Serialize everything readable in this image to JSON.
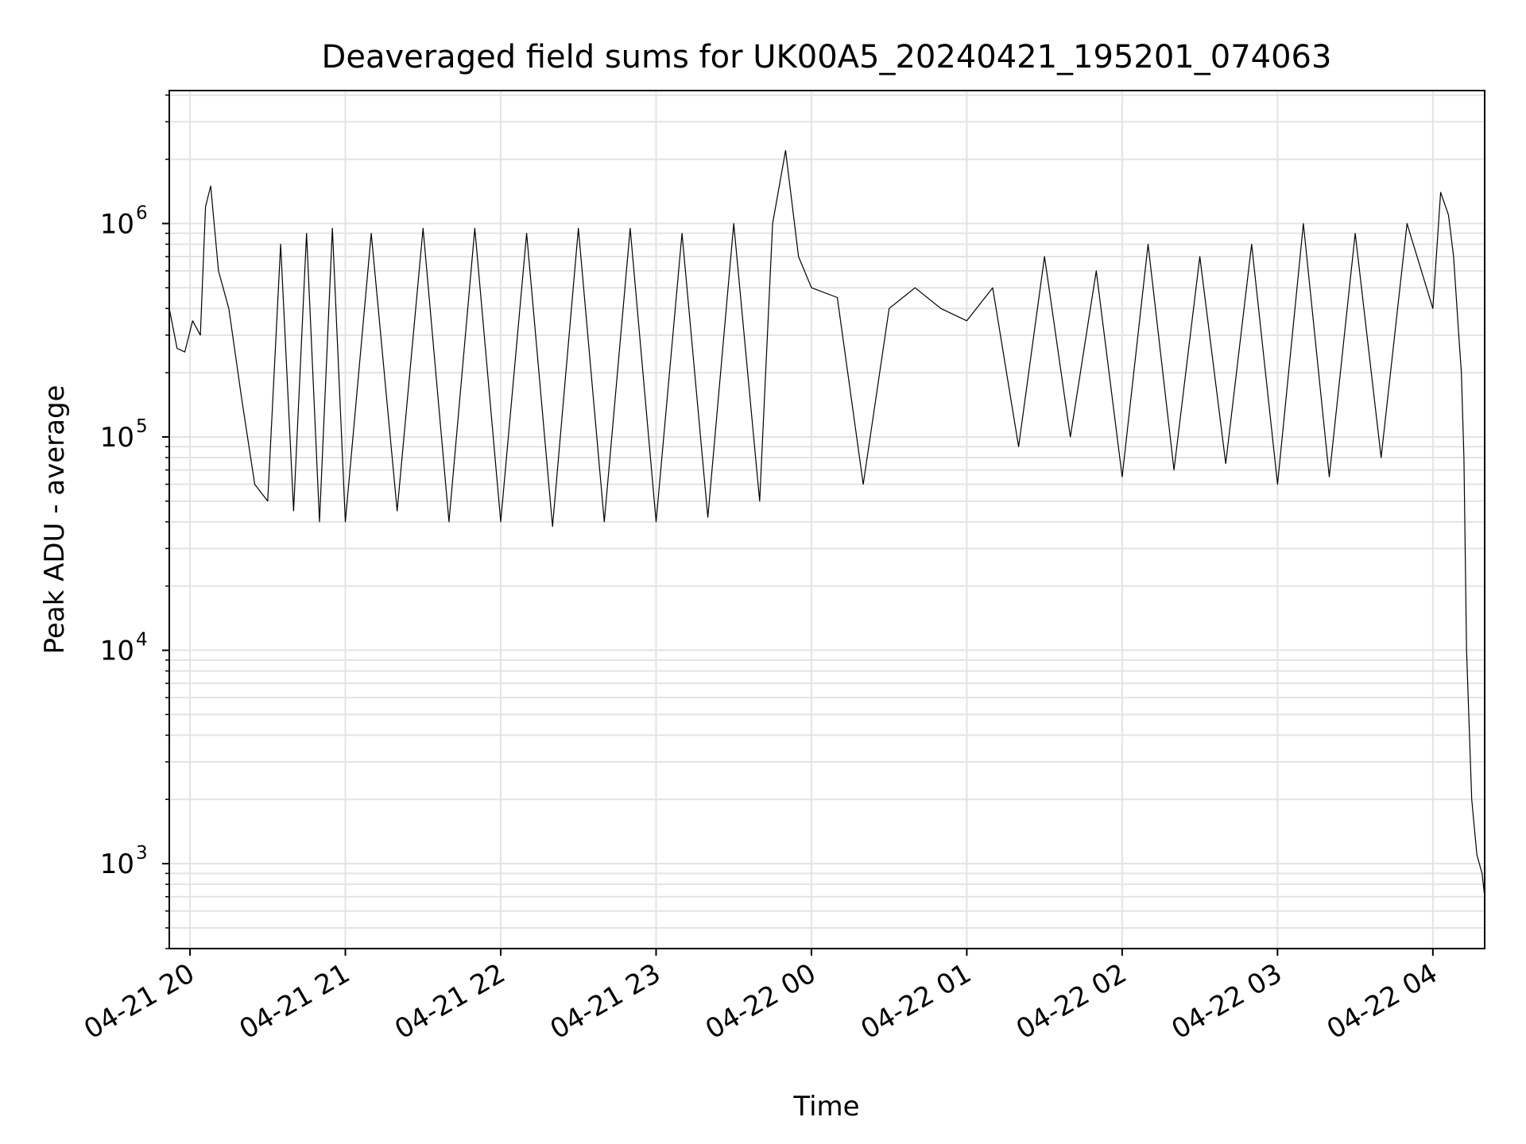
{
  "chart_data": {
    "type": "line",
    "title": "Deaveraged field sums for UK00A5_20240421_195201_074063",
    "xlabel": "Time",
    "ylabel": "Peak ADU - average",
    "yscale": "log",
    "grid": true,
    "xlim": [
      "2024-04-21 19:52",
      "2024-04-22 04:20"
    ],
    "ylim": [
      400,
      4200000
    ],
    "x_ticks": [
      {
        "value": "2024-04-21 20:00",
        "label": "04-21 20"
      },
      {
        "value": "2024-04-21 21:00",
        "label": "04-21 21"
      },
      {
        "value": "2024-04-21 22:00",
        "label": "04-21 22"
      },
      {
        "value": "2024-04-21 23:00",
        "label": "04-21 23"
      },
      {
        "value": "2024-04-22 00:00",
        "label": "04-22 00"
      },
      {
        "value": "2024-04-22 01:00",
        "label": "04-22 01"
      },
      {
        "value": "2024-04-22 02:00",
        "label": "04-22 02"
      },
      {
        "value": "2024-04-22 03:00",
        "label": "04-22 03"
      },
      {
        "value": "2024-04-22 04:00",
        "label": "04-22 04"
      }
    ],
    "y_ticks": [
      {
        "value": 1000,
        "base": "10",
        "exp": "3"
      },
      {
        "value": 10000,
        "base": "10",
        "exp": "4"
      },
      {
        "value": 100000,
        "base": "10",
        "exp": "5"
      },
      {
        "value": 1000000,
        "base": "10",
        "exp": "6"
      }
    ],
    "line_color": "#000000",
    "grid_color": "#e3e3e3",
    "series": [
      {
        "x": [
          "2024-04-21 19:52",
          "2024-04-21 19:55",
          "2024-04-21 19:58",
          "2024-04-21 20:01",
          "2024-04-21 20:04",
          "2024-04-21 20:06",
          "2024-04-21 20:08",
          "2024-04-21 20:11",
          "2024-04-21 20:15",
          "2024-04-21 20:20",
          "2024-04-21 20:25",
          "2024-04-21 20:30",
          "2024-04-21 20:35",
          "2024-04-21 20:40",
          "2024-04-21 20:45",
          "2024-04-21 20:50",
          "2024-04-21 20:55",
          "2024-04-21 21:00",
          "2024-04-21 21:10",
          "2024-04-21 21:20",
          "2024-04-21 21:30",
          "2024-04-21 21:40",
          "2024-04-21 21:50",
          "2024-04-21 22:00",
          "2024-04-21 22:10",
          "2024-04-21 22:20",
          "2024-04-21 22:30",
          "2024-04-21 22:40",
          "2024-04-21 22:50",
          "2024-04-21 23:00",
          "2024-04-21 23:10",
          "2024-04-21 23:20",
          "2024-04-21 23:30",
          "2024-04-21 23:40",
          "2024-04-21 23:45",
          "2024-04-21 23:50",
          "2024-04-21 23:55",
          "2024-04-22 00:00",
          "2024-04-22 00:10",
          "2024-04-22 00:20",
          "2024-04-22 00:30",
          "2024-04-22 00:40",
          "2024-04-22 00:50",
          "2024-04-22 01:00",
          "2024-04-22 01:10",
          "2024-04-22 01:20",
          "2024-04-22 01:30",
          "2024-04-22 01:40",
          "2024-04-22 01:50",
          "2024-04-22 02:00",
          "2024-04-22 02:10",
          "2024-04-22 02:20",
          "2024-04-22 02:30",
          "2024-04-22 02:40",
          "2024-04-22 02:50",
          "2024-04-22 03:00",
          "2024-04-22 03:10",
          "2024-04-22 03:20",
          "2024-04-22 03:30",
          "2024-04-22 03:40",
          "2024-04-22 03:50",
          "2024-04-22 04:00",
          "2024-04-22 04:03",
          "2024-04-22 04:06",
          "2024-04-22 04:08",
          "2024-04-22 04:10",
          "2024-04-22 04:11",
          "2024-04-22 04:12",
          "2024-04-22 04:13",
          "2024-04-22 04:15",
          "2024-04-22 04:17",
          "2024-04-22 04:19",
          "2024-04-22 04:20"
        ],
        "y": [
          400000,
          260000,
          250000,
          350000,
          300000,
          1200000,
          1500000,
          600000,
          400000,
          150000,
          60000,
          50000,
          800000,
          45000,
          900000,
          40000,
          950000,
          40000,
          900000,
          45000,
          950000,
          40000,
          950000,
          40000,
          900000,
          38000,
          950000,
          40000,
          950000,
          40000,
          900000,
          42000,
          1000000,
          50000,
          1000000,
          2200000,
          700000,
          500000,
          450000,
          60000,
          400000,
          500000,
          400000,
          350000,
          500000,
          90000,
          700000,
          100000,
          600000,
          65000,
          800000,
          70000,
          700000,
          75000,
          800000,
          60000,
          1000000,
          65000,
          900000,
          80000,
          1000000,
          400000,
          1400000,
          1100000,
          700000,
          300000,
          200000,
          80000,
          10000,
          2000,
          1100,
          900,
          700
        ]
      }
    ]
  }
}
